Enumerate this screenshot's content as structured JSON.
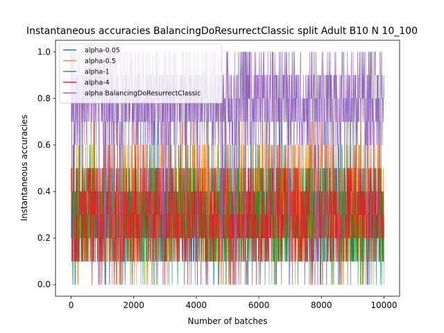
{
  "chart_data": {
    "type": "line",
    "title": "Instantaneous accuracies BalancingDoResurrectClassic split Adult B10 N 10_100",
    "xlabel": "Number of batches",
    "ylabel": "Instantaneous accuracies",
    "xlim": [
      -500,
      10500
    ],
    "ylim": [
      -0.05,
      1.05
    ],
    "xticks": [
      0,
      2000,
      4000,
      6000,
      8000,
      10000
    ],
    "xtick_labels": [
      "0",
      "2000",
      "4000",
      "6000",
      "8000",
      "10000"
    ],
    "yticks": [
      0.0,
      0.2,
      0.4,
      0.6,
      0.8,
      1.0
    ],
    "ytick_labels": [
      "0.0",
      "0.2",
      "0.4",
      "0.6",
      "0.8",
      "1.0"
    ],
    "grid": false,
    "legend_position": "top-left",
    "x_range": [
      0,
      10000
    ],
    "series": [
      {
        "name": "alpha-0.05",
        "color": "#1f77b4",
        "values_range": [
          0.0,
          0.7
        ],
        "typical_band": [
          0.1,
          0.5
        ]
      },
      {
        "name": "alpha-0.5",
        "color": "#ff7f0e",
        "values_range": [
          0.0,
          0.7
        ],
        "typical_band": [
          0.1,
          0.6
        ]
      },
      {
        "name": "alpha-1",
        "color": "#2ca02c",
        "values_range": [
          0.0,
          0.6
        ],
        "typical_band": [
          0.1,
          0.5
        ]
      },
      {
        "name": "alpha-4",
        "color": "#d62728",
        "values_range": [
          0.0,
          0.6
        ],
        "typical_band": [
          0.1,
          0.5
        ]
      },
      {
        "name": "alpha BalancingDoResurrectClassic",
        "color": "#9467bd",
        "values_range": [
          0.0,
          1.0
        ],
        "typical_band": [
          0.6,
          1.0
        ]
      }
    ]
  }
}
